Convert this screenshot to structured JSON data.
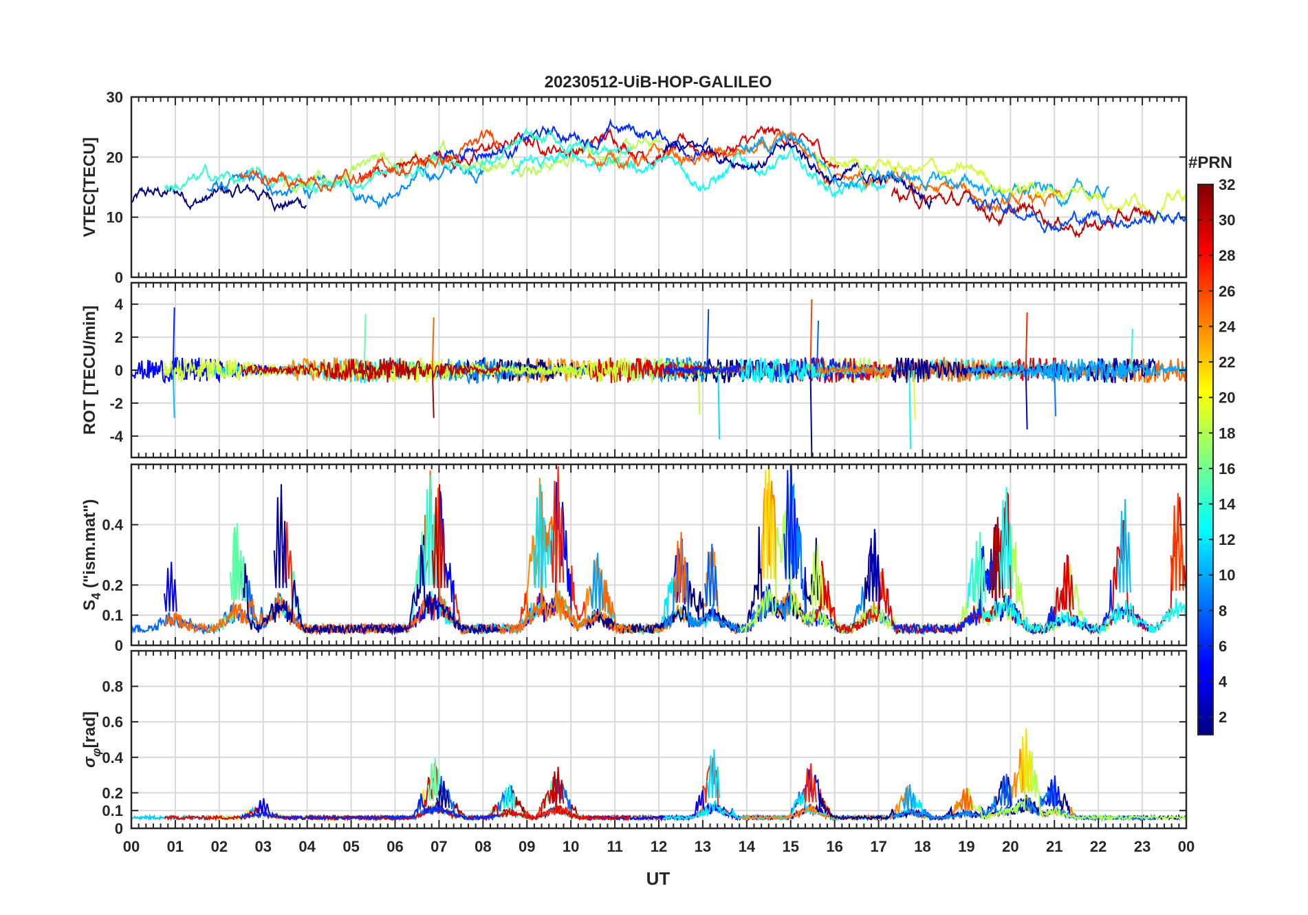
{
  "chart_data": {
    "type": "line",
    "title": "20230512-UiB-HOP-GALILEO",
    "xlabel": "UT",
    "x_tick_labels": [
      "00",
      "01",
      "02",
      "03",
      "04",
      "05",
      "06",
      "07",
      "08",
      "09",
      "10",
      "11",
      "12",
      "13",
      "14",
      "15",
      "16",
      "17",
      "18",
      "19",
      "20",
      "21",
      "22",
      "23",
      "00"
    ],
    "xlim": [
      0,
      24
    ],
    "grid": true,
    "colorbar": {
      "label": "#PRN",
      "range": [
        1,
        32
      ],
      "ticks": [
        "2",
        "4",
        "6",
        "8",
        "10",
        "12",
        "14",
        "16",
        "18",
        "20",
        "22",
        "24",
        "26",
        "28",
        "30",
        "32"
      ],
      "colormap": "jet"
    },
    "panels": [
      {
        "name": "vtec",
        "ylabel": "VTEC[TECU]",
        "ylim": [
          0,
          30
        ],
        "yticks": [
          0,
          10,
          20,
          30
        ],
        "ytick_labels": [
          "0",
          "10",
          "20",
          "30"
        ],
        "baseline": 15,
        "envelope": [
          [
            0,
            15
          ],
          [
            2,
            16
          ],
          [
            4,
            15
          ],
          [
            6,
            17
          ],
          [
            8,
            20
          ],
          [
            9,
            21
          ],
          [
            10,
            21
          ],
          [
            11,
            22
          ],
          [
            12,
            21
          ],
          [
            13,
            20
          ],
          [
            14,
            21
          ],
          [
            15,
            21
          ],
          [
            16,
            17
          ],
          [
            18,
            15
          ],
          [
            20,
            13
          ],
          [
            22,
            12
          ],
          [
            24,
            12
          ]
        ],
        "noise": 2.2,
        "style": "traces"
      },
      {
        "name": "rot",
        "ylabel": "ROT [TECU/min]",
        "ylim": [
          -5.3,
          5.3
        ],
        "yticks": [
          -4,
          -2,
          0,
          2,
          4
        ],
        "ytick_labels": [
          "-4",
          "-2",
          "0",
          "2",
          "4"
        ],
        "baseline": 0,
        "noise": 0.5,
        "spikes": [
          [
            0.95,
            3.8
          ],
          [
            0.95,
            -2.9
          ],
          [
            5.3,
            3.4
          ],
          [
            6.85,
            3.2
          ],
          [
            6.85,
            -2.9
          ],
          [
            13.1,
            3.7
          ],
          [
            13.35,
            -4.2
          ],
          [
            12.9,
            -2.7
          ],
          [
            15.45,
            4.3
          ],
          [
            15.45,
            -5.3
          ],
          [
            15.6,
            3.0
          ],
          [
            17.7,
            -4.8
          ],
          [
            17.8,
            -3.0
          ],
          [
            20.35,
            3.5
          ],
          [
            20.35,
            -3.6
          ],
          [
            21.0,
            -2.8
          ],
          [
            22.75,
            2.5
          ]
        ],
        "style": "noise"
      },
      {
        "name": "s4",
        "ylabel": "S4 (\"ism.mat\")",
        "ylabel_main": "S",
        "ylabel_sub": "4",
        "ylabel_rest": " (\"ism.mat\")",
        "ylim": [
          0,
          0.6
        ],
        "yticks": [
          0,
          0.1,
          0.2,
          0.4
        ],
        "ytick_labels": [
          "0",
          "0.1",
          "0.2",
          "0.4"
        ],
        "baseline": 0.04,
        "noise": 0.03,
        "bursts": [
          [
            0.9,
            0.24
          ],
          [
            2.4,
            0.37
          ],
          [
            3.4,
            0.5
          ],
          [
            6.8,
            0.53
          ],
          [
            7.0,
            0.5
          ],
          [
            9.3,
            0.5
          ],
          [
            9.7,
            0.56
          ],
          [
            10.6,
            0.27
          ],
          [
            12.5,
            0.34
          ],
          [
            13.2,
            0.3
          ],
          [
            14.5,
            0.6
          ],
          [
            15.0,
            0.6
          ],
          [
            15.6,
            0.3
          ],
          [
            16.9,
            0.35
          ],
          [
            19.3,
            0.34
          ],
          [
            19.7,
            0.39
          ],
          [
            19.9,
            0.49
          ],
          [
            21.3,
            0.26
          ],
          [
            22.6,
            0.45
          ],
          [
            23.8,
            0.47
          ]
        ],
        "style": "bursts"
      },
      {
        "name": "sigma_phi",
        "ylabel": "σφ[rad]",
        "ylabel_main": "σ",
        "ylabel_sub": "φ",
        "ylabel_rest": "[rad]",
        "ylim": [
          0,
          1
        ],
        "yticks": [
          0,
          0.1,
          0.2,
          0.4,
          0.6,
          0.8
        ],
        "ytick_labels": [
          "0",
          "0.1",
          "0.2",
          "0.4",
          "0.6",
          "0.8"
        ],
        "baseline": 0.05,
        "noise": 0.02,
        "bursts": [
          [
            3.0,
            0.12
          ],
          [
            6.9,
            0.35
          ],
          [
            7.1,
            0.22
          ],
          [
            8.6,
            0.2
          ],
          [
            9.7,
            0.3
          ],
          [
            13.25,
            0.4
          ],
          [
            15.45,
            0.32
          ],
          [
            17.7,
            0.2
          ],
          [
            19.0,
            0.18
          ],
          [
            19.9,
            0.26
          ],
          [
            20.35,
            0.52
          ],
          [
            21.0,
            0.25
          ]
        ],
        "style": "bursts"
      }
    ]
  }
}
